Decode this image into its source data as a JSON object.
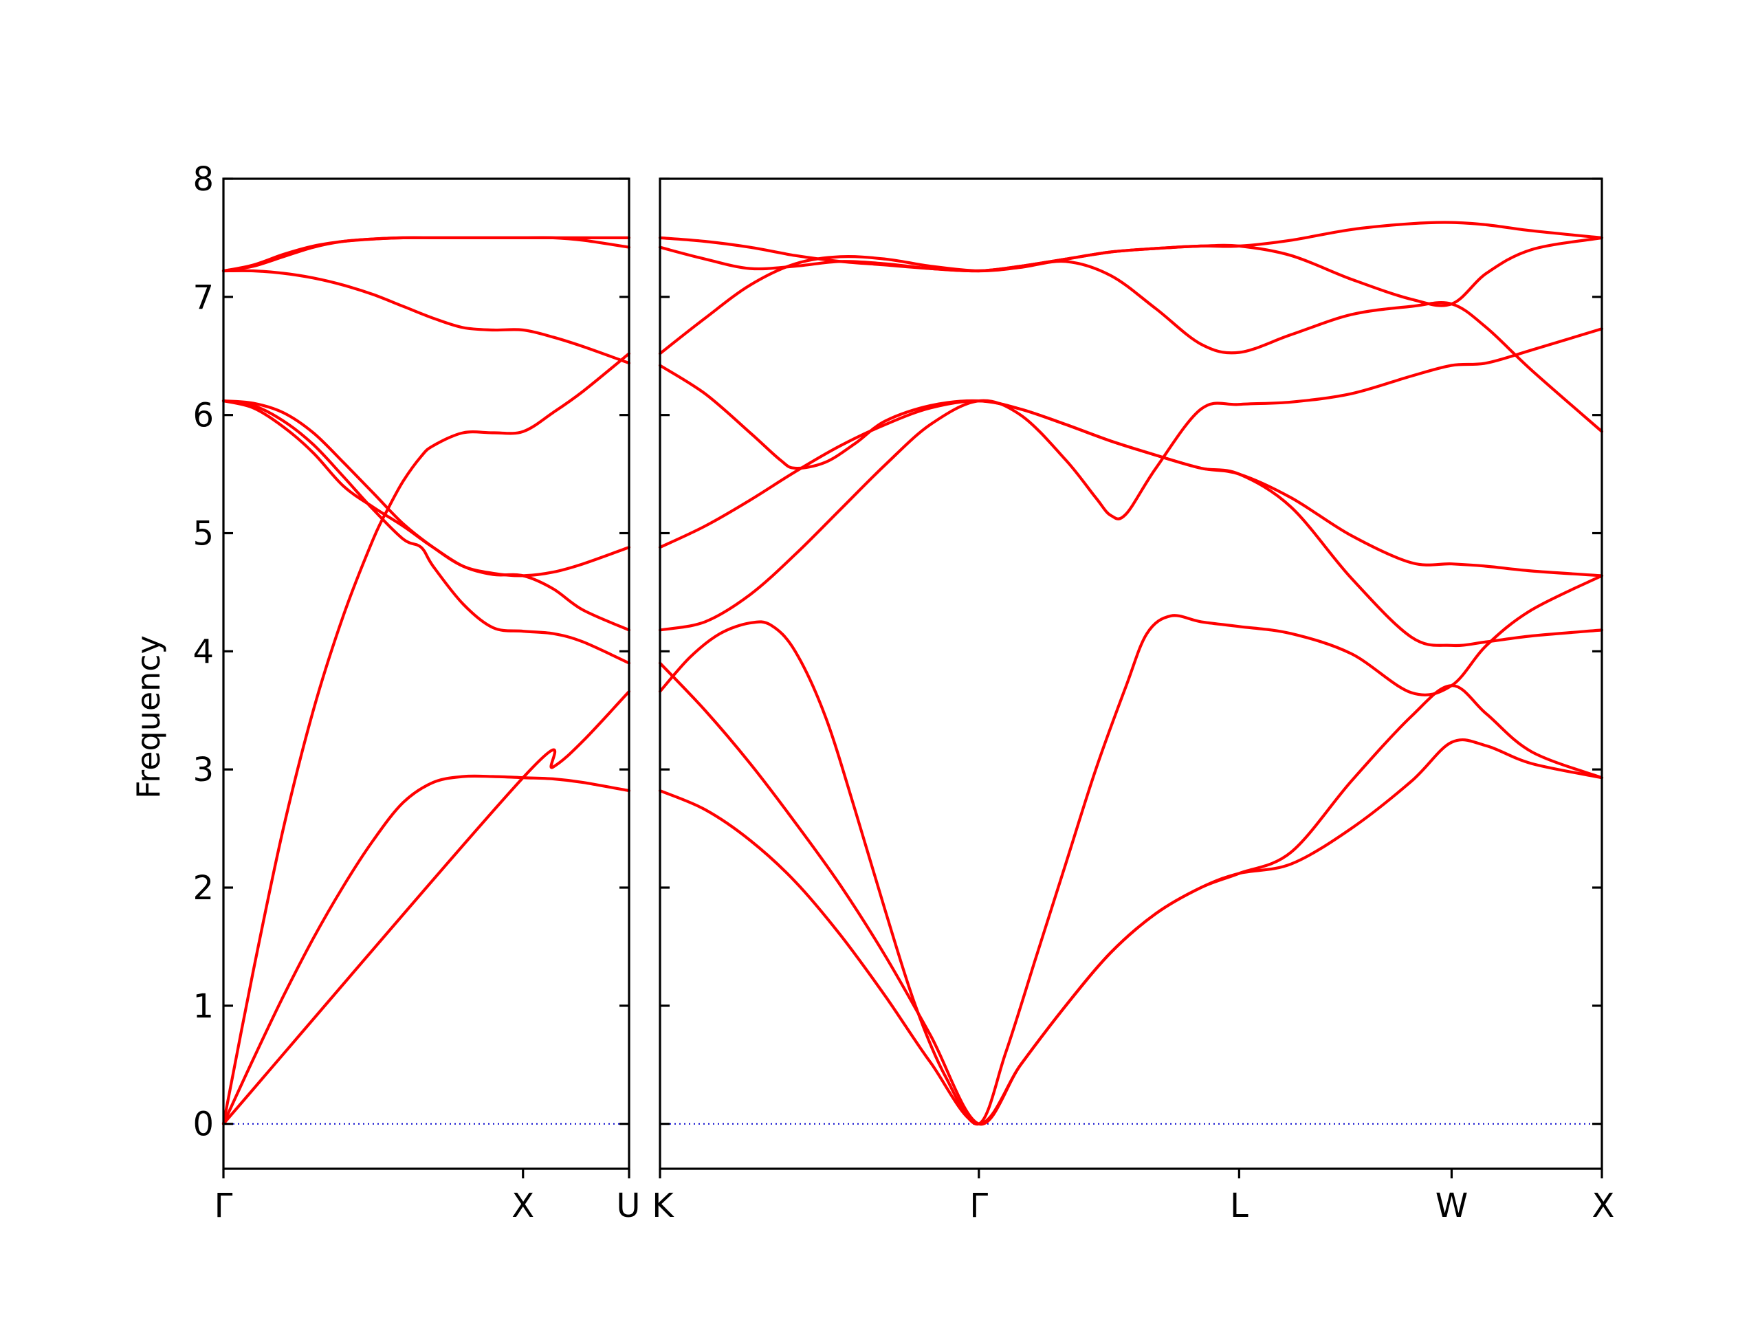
{
  "chart_data": {
    "type": "line",
    "ylabel": "Frequency",
    "ylim": [
      -0.38,
      8.0
    ],
    "yticks": [
      "0",
      "1",
      "2",
      "3",
      "4",
      "5",
      "6",
      "7",
      "8"
    ],
    "grid": false,
    "legend": "none",
    "colors": {
      "bands": "#ff0000",
      "zero_line": "#0000cc",
      "axes": "#000000"
    },
    "panels": [
      {
        "id": "left",
        "xticks": [
          {
            "label": "Γ",
            "x": 0.0
          },
          {
            "label": "X",
            "x": 1.0
          },
          {
            "label": "U",
            "x": 1.354
          }
        ],
        "xlim": [
          0.0,
          1.354
        ],
        "series": [
          {
            "x": [
              0,
              0.1,
              0.2,
              0.3,
              0.4,
              0.5,
              0.6,
              0.7,
              0.8,
              0.9,
              1.0,
              1.1,
              1.2,
              1.354
            ],
            "y": [
              0,
              0.55,
              1.08,
              1.57,
              2.01,
              2.4,
              2.72,
              2.89,
              2.94,
              2.94,
              2.93,
              2.92,
              2.89,
              2.82
            ]
          },
          {
            "x": [
              0,
              0.1,
              0.2,
              0.3,
              0.4,
              0.5,
              0.55,
              0.6,
              0.66,
              0.7,
              0.8,
              0.9,
              1.0,
              1.1,
              1.2,
              1.354
            ],
            "y": [
              0,
              1.3,
              2.5,
              3.5,
              4.3,
              4.95,
              5.21,
              5.44,
              5.65,
              5.74,
              5.85,
              5.85,
              5.86,
              6.02,
              6.2,
              6.52
            ]
          },
          {
            "x": [
              0,
              1.0,
              1.1,
              1.2,
              1.354
            ],
            "y": [
              0,
              2.93,
              3.02,
              3.24,
              3.66
            ]
          },
          {
            "x": [
              0,
              0.1,
              0.2,
              0.3,
              0.4,
              0.5,
              0.6,
              0.66,
              0.7,
              0.8,
              0.9,
              1.0,
              1.1,
              1.2,
              1.354
            ],
            "y": [
              6.12,
              6.08,
              5.95,
              5.75,
              5.48,
              5.2,
              4.95,
              4.88,
              4.72,
              4.4,
              4.2,
              4.17,
              4.15,
              4.08,
              3.9
            ]
          },
          {
            "x": [
              0,
              0.1,
              0.2,
              0.3,
              0.4,
              0.5,
              0.6,
              0.66,
              0.7,
              0.8,
              0.9,
              1.0,
              1.1,
              1.2,
              1.354
            ],
            "y": [
              6.12,
              6.06,
              5.9,
              5.68,
              5.4,
              5.22,
              5.06,
              4.95,
              4.88,
              4.72,
              4.65,
              4.64,
              4.53,
              4.35,
              4.18
            ]
          },
          {
            "x": [
              0,
              0.1,
              0.2,
              0.3,
              0.4,
              0.5,
              0.6,
              0.7,
              0.8,
              0.9,
              1.0,
              1.1,
              1.2,
              1.354
            ],
            "y": [
              6.12,
              6.1,
              6.02,
              5.85,
              5.6,
              5.34,
              5.08,
              4.88,
              4.72,
              4.66,
              4.64,
              4.67,
              4.74,
              4.88
            ]
          },
          {
            "x": [
              0,
              0.1,
              0.2,
              0.3,
              0.4,
              0.5,
              0.6,
              0.7,
              0.8,
              0.9,
              1.0,
              1.1,
              1.2,
              1.354
            ],
            "y": [
              7.22,
              7.22,
              7.2,
              7.16,
              7.1,
              7.02,
              6.92,
              6.82,
              6.74,
              6.72,
              6.72,
              6.66,
              6.58,
              6.44
            ]
          },
          {
            "x": [
              0,
              0.1,
              0.2,
              0.3,
              0.4,
              0.5,
              0.6,
              0.7,
              0.8,
              0.9,
              1.0,
              1.1,
              1.2,
              1.354
            ],
            "y": [
              7.22,
              7.27,
              7.36,
              7.43,
              7.47,
              7.49,
              7.5,
              7.5,
              7.5,
              7.5,
              7.5,
              7.5,
              7.48,
              7.42
            ]
          },
          {
            "x": [
              0,
              0.1,
              0.2,
              0.3,
              0.4,
              0.5,
              0.6,
              0.7,
              0.8,
              0.9,
              1.0,
              1.1,
              1.2,
              1.354
            ],
            "y": [
              7.22,
              7.26,
              7.34,
              7.42,
              7.47,
              7.49,
              7.5,
              7.5,
              7.5,
              7.5,
              7.5,
              7.5,
              7.5,
              7.5
            ]
          }
        ]
      },
      {
        "id": "right",
        "xticks": [
          {
            "label": "K",
            "x": 0.0
          },
          {
            "label": "Γ",
            "x": 1.061
          },
          {
            "label": "L",
            "x": 1.927
          },
          {
            "label": "W",
            "x": 2.634
          },
          {
            "label": "X",
            "x": 3.134
          }
        ],
        "xlim": [
          0.0,
          3.134
        ],
        "series": [
          {
            "x": [
              0,
              0.15,
              0.3,
              0.45,
              0.6,
              0.75,
              0.9,
              1.061,
              1.2,
              1.35,
              1.5,
              1.65,
              1.8,
              1.927,
              2.1,
              2.3,
              2.5,
              2.634,
              2.75,
              2.9,
              3.134
            ],
            "y": [
              2.82,
              2.66,
              2.4,
              2.05,
              1.6,
              1.08,
              0.52,
              0,
              0.5,
              1.0,
              1.45,
              1.78,
              2.0,
              2.12,
              2.2,
              2.5,
              2.9,
              3.23,
              3.2,
              3.05,
              2.93
            ]
          },
          {
            "x": [
              0,
              0.15,
              0.3,
              0.45,
              0.6,
              0.75,
              0.9,
              1.061,
              1.2,
              1.35,
              1.5,
              1.65,
              1.8,
              1.927,
              2.1,
              2.3,
              2.5,
              2.634,
              2.75,
              2.9,
              3.134
            ],
            "y": [
              3.9,
              3.5,
              3.05,
              2.55,
              2.02,
              1.42,
              0.75,
              0,
              0.5,
              1.0,
              1.45,
              1.78,
              2.0,
              2.12,
              2.3,
              2.9,
              3.45,
              3.71,
              3.47,
              3.15,
              2.93
            ]
          },
          {
            "x": [
              0,
              0.1,
              0.2,
              0.3,
              0.37,
              0.45,
              0.55,
              0.65,
              0.75,
              0.85,
              0.95,
              1.061,
              1.15,
              1.25,
              1.35,
              1.45,
              1.55,
              1.62,
              1.7,
              1.8,
              1.927,
              2.1,
              2.3,
              2.5,
              2.634,
              2.75,
              2.9,
              3.134
            ],
            "y": [
              3.66,
              3.95,
              4.15,
              4.24,
              4.22,
              4.0,
              3.45,
              2.65,
              1.8,
              1.0,
              0.4,
              0,
              0.6,
              1.4,
              2.2,
              3.0,
              3.7,
              4.15,
              4.3,
              4.25,
              4.21,
              4.15,
              3.98,
              3.65,
              3.71,
              4.05,
              4.35,
              4.64
            ]
          },
          {
            "x": [
              0,
              0.15,
              0.3,
              0.45,
              0.6,
              0.75,
              0.9,
              1.061,
              1.2,
              1.35,
              1.45,
              1.5,
              1.55,
              1.65,
              1.8,
              1.927,
              2.1,
              2.3,
              2.5,
              2.634,
              2.75,
              2.9,
              3.134
            ],
            "y": [
              4.18,
              4.25,
              4.48,
              4.82,
              5.2,
              5.58,
              5.92,
              6.12,
              6.0,
              5.62,
              5.3,
              5.15,
              5.16,
              5.55,
              6.05,
              6.09,
              6.11,
              6.18,
              6.33,
              6.42,
              6.44,
              6.55,
              6.73
            ]
          },
          {
            "x": [
              0,
              0.15,
              0.3,
              0.45,
              0.6,
              0.75,
              0.9,
              1.061,
              1.2,
              1.35,
              1.5,
              1.65,
              1.8,
              1.927,
              2.1,
              2.3,
              2.5,
              2.634,
              2.75,
              2.9,
              3.134
            ],
            "y": [
              4.88,
              5.06,
              5.28,
              5.52,
              5.74,
              5.92,
              6.06,
              6.12,
              6.05,
              5.92,
              5.78,
              5.66,
              5.55,
              5.5,
              5.3,
              4.98,
              4.75,
              4.74,
              4.72,
              4.68,
              4.64
            ]
          },
          {
            "x": [
              0,
              0.15,
              0.3,
              0.4,
              0.45,
              0.55,
              0.65,
              0.75,
              0.9,
              1.061,
              1.2,
              1.35,
              1.5,
              1.65,
              1.8,
              1.927,
              2.1,
              2.3,
              2.5,
              2.634,
              2.75,
              2.9,
              3.134
            ],
            "y": [
              6.42,
              6.18,
              5.85,
              5.62,
              5.55,
              5.6,
              5.76,
              5.95,
              6.08,
              6.12,
              6.05,
              5.92,
              5.78,
              5.66,
              5.55,
              5.5,
              5.22,
              4.62,
              4.12,
              4.05,
              4.08,
              4.13,
              4.18
            ]
          },
          {
            "x": [
              0,
              0.15,
              0.3,
              0.45,
              0.6,
              0.75,
              0.9,
              1.061,
              1.2,
              1.35,
              1.5,
              1.65,
              1.8,
              1.927,
              2.1,
              2.3,
              2.5,
              2.634,
              2.75,
              2.9,
              3.134
            ],
            "y": [
              6.52,
              6.82,
              7.1,
              7.28,
              7.34,
              7.32,
              7.26,
              7.22,
              7.25,
              7.3,
              7.18,
              6.9,
              6.6,
              6.53,
              6.68,
              6.85,
              6.92,
              6.94,
              6.74,
              6.38,
              5.86
            ]
          },
          {
            "x": [
              0,
              0.15,
              0.3,
              0.45,
              0.6,
              0.75,
              0.9,
              1.061,
              1.2,
              1.35,
              1.5,
              1.65,
              1.8,
              1.927,
              2.1,
              2.3,
              2.5,
              2.634,
              2.75,
              2.9,
              3.134
            ],
            "y": [
              7.42,
              7.32,
              7.24,
              7.26,
              7.3,
              7.28,
              7.24,
              7.22,
              7.26,
              7.32,
              7.38,
              7.41,
              7.43,
              7.43,
              7.35,
              7.15,
              6.98,
              6.94,
              7.2,
              7.4,
              7.5
            ]
          },
          {
            "x": [
              0,
              0.15,
              0.3,
              0.45,
              0.6,
              0.75,
              0.9,
              1.061,
              1.2,
              1.35,
              1.5,
              1.65,
              1.8,
              1.927,
              2.1,
              2.3,
              2.5,
              2.634,
              2.75,
              2.9,
              3.134
            ],
            "y": [
              7.5,
              7.47,
              7.42,
              7.35,
              7.3,
              7.27,
              7.24,
              7.22,
              7.26,
              7.32,
              7.38,
              7.41,
              7.43,
              7.43,
              7.48,
              7.57,
              7.62,
              7.63,
              7.61,
              7.56,
              7.5
            ]
          }
        ]
      }
    ]
  }
}
